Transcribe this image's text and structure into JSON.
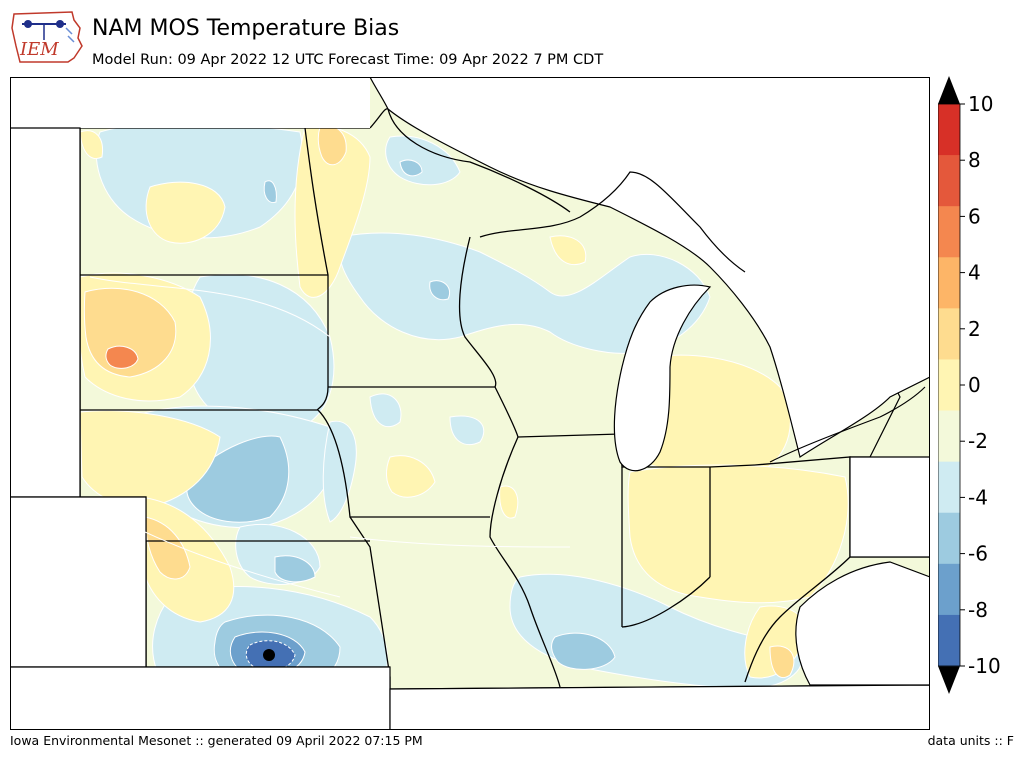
{
  "header": {
    "logo_text": "IEM",
    "title": "NAM MOS Temperature Bias",
    "subtitle": "Model Run: 09 Apr 2022 12 UTC Forecast Time: 09 Apr 2022 7 PM CDT"
  },
  "colorbar": {
    "ticks": [
      "10",
      "8",
      "6",
      "4",
      "2",
      "0",
      "-2",
      "-4",
      "-6",
      "-8",
      "-10"
    ],
    "levels": [
      10,
      8,
      6,
      4,
      2,
      0,
      -2,
      -4,
      -6,
      -8,
      -10
    ],
    "band_colors": [
      "#d73027",
      "#e4583b",
      "#f4874f",
      "#fdb567",
      "#fedc8f",
      "#fff5b3",
      "#f3f9da",
      "#cfebf2",
      "#9dcbe0",
      "#6ca0cc",
      "#4470b4"
    ]
  },
  "footer": {
    "left": "Iowa Environmental Mesonet :: generated 09 April 2022 07:15 PM",
    "right": "data units :: F"
  }
}
